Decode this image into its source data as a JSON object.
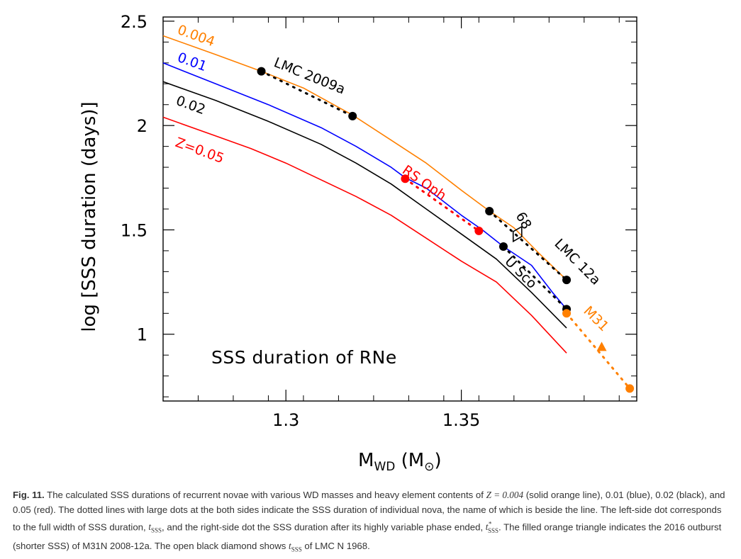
{
  "chart_data": {
    "type": "line",
    "title": "SSS duration of RNe",
    "xlabel": "M_WD (M_⊙)",
    "ylabel": "log [SSS duration (days)]",
    "xlim": [
      1.265,
      1.4
    ],
    "ylim": [
      0.68,
      2.52
    ],
    "xticks": [
      {
        "value": 1.3,
        "label": "1.3"
      },
      {
        "value": 1.35,
        "label": "1.35"
      }
    ],
    "yticks": [
      {
        "value": 1,
        "label": "1"
      },
      {
        "value": 1.5,
        "label": "1.5"
      },
      {
        "value": 2,
        "label": "2"
      },
      {
        "value": 2.5,
        "label": "2.5"
      }
    ],
    "minor_x": [
      1.275,
      1.285,
      1.295,
      1.305,
      1.315,
      1.325,
      1.335,
      1.345,
      1.355,
      1.365,
      1.375,
      1.385,
      1.395
    ],
    "minor_y": [
      0.7,
      0.8,
      0.9,
      1.1,
      1.2,
      1.3,
      1.4,
      1.6,
      1.7,
      1.8,
      1.9,
      2.1,
      2.2,
      2.3,
      2.4
    ],
    "grid": false,
    "series": [
      {
        "name": "0.004",
        "color": "#ff8000",
        "x": [
          1.265,
          1.28,
          1.293,
          1.305,
          1.319,
          1.33,
          1.34,
          1.35,
          1.358,
          1.365,
          1.372,
          1.38
        ],
        "y": [
          2.43,
          2.34,
          2.26,
          2.18,
          2.05,
          1.93,
          1.82,
          1.69,
          1.59,
          1.51,
          1.39,
          1.26
        ]
      },
      {
        "name": "0.01",
        "color": "#0000ff",
        "x": [
          1.265,
          1.28,
          1.295,
          1.31,
          1.32,
          1.33,
          1.334,
          1.34,
          1.35,
          1.356,
          1.362,
          1.37,
          1.376,
          1.38
        ],
        "y": [
          2.3,
          2.2,
          2.1,
          1.99,
          1.9,
          1.8,
          1.75,
          1.7,
          1.57,
          1.5,
          1.42,
          1.33,
          1.2,
          1.12
        ]
      },
      {
        "name": "0.02",
        "color": "#000000",
        "x": [
          1.265,
          1.28,
          1.295,
          1.31,
          1.32,
          1.33,
          1.34,
          1.35,
          1.36,
          1.37,
          1.38
        ],
        "y": [
          2.21,
          2.12,
          2.02,
          1.91,
          1.82,
          1.72,
          1.6,
          1.48,
          1.36,
          1.2,
          1.03
        ]
      },
      {
        "name": "Z=0.05",
        "color": "#ff0000",
        "x": [
          1.265,
          1.28,
          1.29,
          1.3,
          1.31,
          1.32,
          1.33,
          1.34,
          1.35,
          1.36,
          1.37,
          1.38
        ],
        "y": [
          2.04,
          1.95,
          1.89,
          1.82,
          1.74,
          1.66,
          1.57,
          1.46,
          1.35,
          1.25,
          1.09,
          0.91
        ]
      }
    ],
    "novae": [
      {
        "name": "LMC 2009a",
        "color": "#000000",
        "line_color": "#000000",
        "points": [
          [
            1.293,
            2.26
          ],
          [
            1.319,
            2.045
          ]
        ]
      },
      {
        "name": "RS Oph",
        "color": "#ff0000",
        "line_color": "#ff0000",
        "points": [
          [
            1.334,
            1.745
          ],
          [
            1.355,
            1.495
          ]
        ]
      },
      {
        "name": "U Sco",
        "color": "#000000",
        "line_color": "#000000",
        "points": [
          [
            1.362,
            1.42
          ],
          [
            1.38,
            1.12
          ]
        ]
      },
      {
        "name": "LMC 12a",
        "color": "#000000",
        "line_color": "#000000",
        "points": [
          [
            1.358,
            1.59
          ],
          [
            1.38,
            1.26
          ]
        ]
      },
      {
        "name": "M31",
        "color": "#ff8000",
        "line_color": "#ff8000",
        "points": [
          [
            1.38,
            1.1
          ],
          [
            1.398,
            0.74
          ]
        ]
      }
    ],
    "markers": [
      {
        "name": "68",
        "shape": "open-diamond",
        "color": "#000000",
        "x": 1.366,
        "y": 1.48
      },
      {
        "name": "",
        "shape": "filled-triangle",
        "color": "#ff8000",
        "x": 1.39,
        "y": 0.94
      }
    ],
    "curve_labels": [
      {
        "text": "0.004",
        "color": "#ff8000"
      },
      {
        "text": "0.01",
        "color": "#0000ff"
      },
      {
        "text": "0.02",
        "color": "#000000"
      },
      {
        "text": "Z=0.05",
        "color": "#ff0000"
      }
    ],
    "annotations": [
      {
        "text": "LMC 2009a",
        "color": "#000000"
      },
      {
        "text": "RS Oph",
        "color": "#ff0000"
      },
      {
        "text": "68",
        "color": "#000000"
      },
      {
        "text": "LMC 12a",
        "color": "#000000"
      },
      {
        "text": "U Sco",
        "color": "#000000"
      },
      {
        "text": "M31",
        "color": "#ff8000"
      }
    ]
  },
  "caption": {
    "label": "Fig. 11.",
    "text_1": "The calculated SSS durations of recurrent novae with various WD masses and heavy element contents of",
    "z_expr": "Z = 0.004",
    "text_2": "(solid orange line), 0.01 (blue), 0.02 (black), and 0.05 (red). The dotted lines with large dots at the both sides indicate the SSS duration of individual nova, the name of which is beside the line. The left-side dot corresponds to the full width of SSS duration,",
    "t_sss": "t",
    "sss_sub": "SSS",
    "text_3": ", and the right-side dot the SSS duration after its highly variable phase ended,",
    "t_sss_star": "t",
    "star": "*",
    "text_4": ". The filled orange triangle indicates the 2016 outburst (shorter SSS) of M31N 2008-12a. The open black diamond shows",
    "t_sss_2": "t",
    "text_5": "of LMC N 1968."
  }
}
